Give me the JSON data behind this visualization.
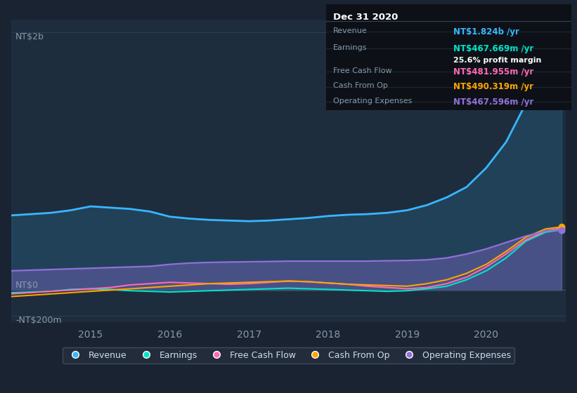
{
  "bg_color": "#1a2332",
  "plot_bg_color": "#1e2d3d",
  "darker_bg": "#152030",
  "title_box_date": "Dec 31 2020",
  "title_box_bg": "#0d1117",
  "table_data": {
    "Revenue": {
      "value": "NT$1.824b /yr",
      "color": "#38b6ff"
    },
    "Earnings": {
      "value": "NT$467.669m /yr",
      "color": "#00e5c8",
      "sub": "25.6% profit margin"
    },
    "Free Cash Flow": {
      "value": "NT$481.955m /yr",
      "color": "#ff69b4"
    },
    "Cash From Op": {
      "value": "NT$490.319m /yr",
      "color": "#ffa500"
    },
    "Operating Expenses": {
      "value": "NT$467.596m /yr",
      "color": "#9370db"
    }
  },
  "ylabel_top": "NT$2b",
  "ylabel_zero": "NT$0",
  "ylabel_neg": "-NT$200m",
  "x_ticks": [
    2014.5,
    2015,
    2016,
    2017,
    2018,
    2019,
    2020,
    2020.8
  ],
  "x_tick_labels": [
    "",
    "2015",
    "2016",
    "2017",
    "2018",
    "2019",
    "2020",
    ""
  ],
  "ylim": [
    -250000000,
    2100000000
  ],
  "revenue_color": "#38b6ff",
  "earnings_color": "#00e5c8",
  "fcf_color": "#ff69b4",
  "cashop_color": "#ffa500",
  "opex_color": "#9370db",
  "legend": [
    {
      "label": "Revenue",
      "color": "#38b6ff"
    },
    {
      "label": "Earnings",
      "color": "#00e5c8"
    },
    {
      "label": "Free Cash Flow",
      "color": "#ff69b4"
    },
    {
      "label": "Cash From Op",
      "color": "#ffa500"
    },
    {
      "label": "Operating Expenses",
      "color": "#9370db"
    }
  ],
  "time_points": [
    2014.0,
    2014.25,
    2014.5,
    2014.75,
    2015.0,
    2015.25,
    2015.5,
    2015.75,
    2016.0,
    2016.25,
    2016.5,
    2016.75,
    2017.0,
    2017.25,
    2017.5,
    2017.75,
    2018.0,
    2018.25,
    2018.5,
    2018.75,
    2019.0,
    2019.25,
    2019.5,
    2019.75,
    2020.0,
    2020.25,
    2020.5,
    2020.75,
    2020.95
  ],
  "revenue": [
    580000000,
    590000000,
    600000000,
    620000000,
    650000000,
    640000000,
    630000000,
    610000000,
    570000000,
    555000000,
    545000000,
    540000000,
    535000000,
    540000000,
    550000000,
    560000000,
    575000000,
    585000000,
    590000000,
    600000000,
    620000000,
    660000000,
    720000000,
    800000000,
    950000000,
    1150000000,
    1450000000,
    1700000000,
    1824000000
  ],
  "earnings": [
    -20000000,
    -15000000,
    -10000000,
    5000000,
    10000000,
    5000000,
    -5000000,
    -10000000,
    -15000000,
    -10000000,
    -5000000,
    0,
    5000000,
    10000000,
    15000000,
    10000000,
    5000000,
    0,
    -5000000,
    -10000000,
    -5000000,
    10000000,
    30000000,
    80000000,
    150000000,
    250000000,
    380000000,
    450000000,
    467669000
  ],
  "fcf": [
    -30000000,
    -20000000,
    -10000000,
    0,
    10000000,
    20000000,
    40000000,
    50000000,
    60000000,
    55000000,
    50000000,
    45000000,
    50000000,
    60000000,
    70000000,
    65000000,
    55000000,
    45000000,
    30000000,
    20000000,
    10000000,
    20000000,
    50000000,
    100000000,
    180000000,
    280000000,
    390000000,
    460000000,
    481955000
  ],
  "cashop": [
    -50000000,
    -40000000,
    -30000000,
    -20000000,
    -10000000,
    0,
    10000000,
    20000000,
    30000000,
    40000000,
    50000000,
    55000000,
    60000000,
    65000000,
    70000000,
    65000000,
    55000000,
    45000000,
    40000000,
    35000000,
    30000000,
    50000000,
    80000000,
    130000000,
    200000000,
    300000000,
    410000000,
    475000000,
    490319000
  ],
  "opex": [
    150000000,
    155000000,
    160000000,
    165000000,
    170000000,
    175000000,
    180000000,
    185000000,
    200000000,
    210000000,
    215000000,
    218000000,
    220000000,
    222000000,
    225000000,
    225000000,
    225000000,
    225000000,
    225000000,
    228000000,
    230000000,
    235000000,
    250000000,
    280000000,
    320000000,
    370000000,
    420000000,
    458000000,
    467596000
  ]
}
